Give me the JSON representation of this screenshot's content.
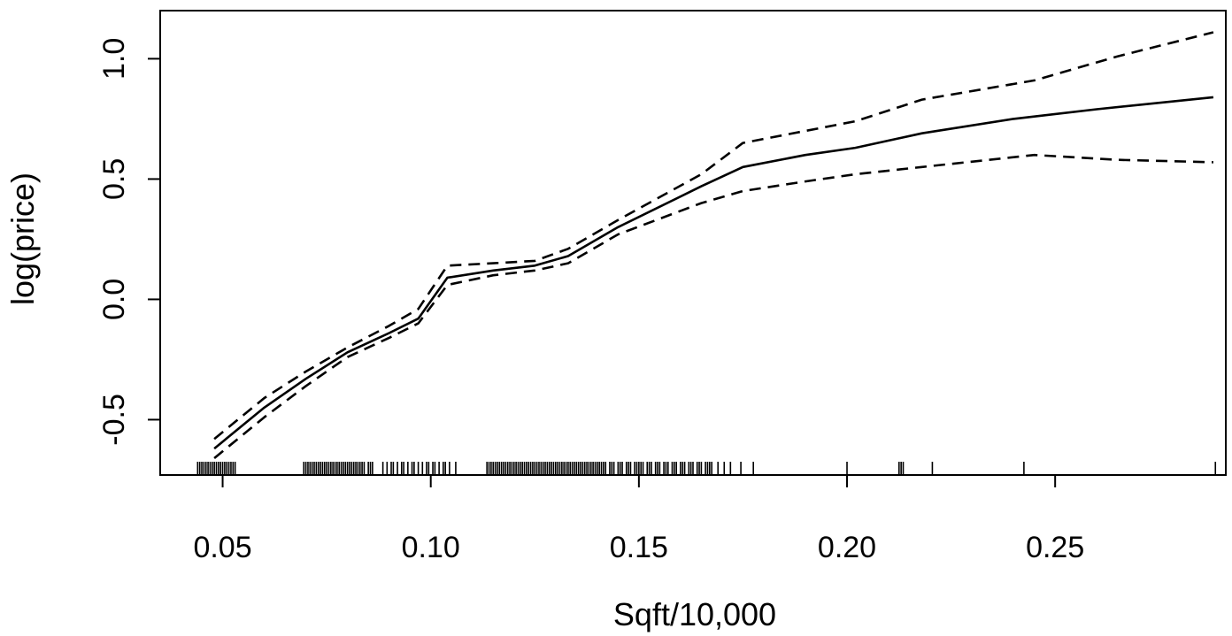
{
  "chart_data": {
    "type": "line",
    "xlabel": "Sqft/10,000",
    "ylabel": "log(price)",
    "xlim": [
      0.035,
      0.291
    ],
    "ylim": [
      -0.73,
      1.2
    ],
    "x_ticks": [
      {
        "value": 0.05,
        "label": "0.05"
      },
      {
        "value": 0.1,
        "label": "0.10"
      },
      {
        "value": 0.15,
        "label": "0.15"
      },
      {
        "value": 0.2,
        "label": "0.20"
      },
      {
        "value": 0.25,
        "label": "0.25"
      }
    ],
    "y_ticks": [
      {
        "value": -0.5,
        "label": "-0.5"
      },
      {
        "value": 0.0,
        "label": "0.0"
      },
      {
        "value": 0.5,
        "label": "0.5"
      },
      {
        "value": 1.0,
        "label": "1.0"
      }
    ],
    "grid": false,
    "series": [
      {
        "style": "solid",
        "x": [
          0.048,
          0.06,
          0.07,
          0.08,
          0.09,
          0.097,
          0.104,
          0.115,
          0.125,
          0.133,
          0.145,
          0.165,
          0.175,
          0.19,
          0.202,
          0.218,
          0.24,
          0.26,
          0.288
        ],
        "y": [
          -0.62,
          -0.45,
          -0.33,
          -0.22,
          -0.14,
          -0.08,
          0.09,
          0.12,
          0.14,
          0.18,
          0.3,
          0.47,
          0.55,
          0.6,
          0.63,
          0.69,
          0.75,
          0.79,
          0.84
        ]
      },
      {
        "style": "dashed",
        "x": [
          0.048,
          0.06,
          0.07,
          0.08,
          0.09,
          0.097,
          0.104,
          0.115,
          0.125,
          0.133,
          0.145,
          0.165,
          0.175,
          0.19,
          0.202,
          0.218,
          0.245,
          0.265,
          0.288
        ],
        "y": [
          -0.58,
          -0.41,
          -0.3,
          -0.2,
          -0.11,
          -0.04,
          0.14,
          0.15,
          0.16,
          0.21,
          0.33,
          0.52,
          0.65,
          0.7,
          0.74,
          0.83,
          0.91,
          1.01,
          1.11
        ]
      },
      {
        "style": "dashed",
        "x": [
          0.048,
          0.06,
          0.07,
          0.08,
          0.09,
          0.097,
          0.104,
          0.115,
          0.125,
          0.133,
          0.145,
          0.165,
          0.175,
          0.19,
          0.202,
          0.218,
          0.245,
          0.265,
          0.288
        ],
        "y": [
          -0.66,
          -0.49,
          -0.36,
          -0.24,
          -0.16,
          -0.1,
          0.06,
          0.1,
          0.12,
          0.15,
          0.27,
          0.4,
          0.45,
          0.49,
          0.52,
          0.55,
          0.6,
          0.58,
          0.57
        ]
      }
    ],
    "rug_x": [
      0.044,
      0.0445,
      0.045,
      0.0455,
      0.046,
      0.0465,
      0.047,
      0.0475,
      0.048,
      0.0485,
      0.049,
      0.0495,
      0.05,
      0.0505,
      0.051,
      0.0515,
      0.052,
      0.0525,
      0.053,
      0.0695,
      0.07,
      0.0705,
      0.071,
      0.0715,
      0.072,
      0.0725,
      0.073,
      0.0735,
      0.074,
      0.0745,
      0.075,
      0.0755,
      0.076,
      0.0765,
      0.077,
      0.0775,
      0.078,
      0.0785,
      0.079,
      0.0795,
      0.08,
      0.0805,
      0.081,
      0.0815,
      0.082,
      0.0825,
      0.083,
      0.0835,
      0.084,
      0.085,
      0.0855,
      0.086,
      0.0885,
      0.0895,
      0.0905,
      0.091,
      0.092,
      0.093,
      0.0935,
      0.0945,
      0.0955,
      0.096,
      0.097,
      0.098,
      0.099,
      0.0995,
      0.1005,
      0.101,
      0.102,
      0.103,
      0.1035,
      0.1045,
      0.106,
      0.1135,
      0.114,
      0.1145,
      0.115,
      0.1155,
      0.116,
      0.1165,
      0.117,
      0.1175,
      0.118,
      0.1185,
      0.119,
      0.1195,
      0.12,
      0.1205,
      0.121,
      0.1215,
      0.122,
      0.1225,
      0.123,
      0.1235,
      0.124,
      0.1245,
      0.125,
      0.1255,
      0.126,
      0.1265,
      0.127,
      0.1275,
      0.128,
      0.1285,
      0.129,
      0.1295,
      0.13,
      0.1305,
      0.131,
      0.1315,
      0.132,
      0.1325,
      0.133,
      0.1335,
      0.134,
      0.1345,
      0.135,
      0.1355,
      0.136,
      0.1365,
      0.137,
      0.1375,
      0.138,
      0.1385,
      0.139,
      0.1395,
      0.14,
      0.1405,
      0.141,
      0.1415,
      0.142,
      0.143,
      0.1435,
      0.144,
      0.145,
      0.1455,
      0.146,
      0.147,
      0.1475,
      0.148,
      0.149,
      0.1495,
      0.15,
      0.1505,
      0.151,
      0.152,
      0.1525,
      0.153,
      0.154,
      0.1545,
      0.155,
      0.156,
      0.1565,
      0.157,
      0.158,
      0.1585,
      0.159,
      0.16,
      0.1605,
      0.161,
      0.162,
      0.1625,
      0.163,
      0.164,
      0.1645,
      0.165,
      0.166,
      0.1665,
      0.167,
      0.1675,
      0.169,
      0.1705,
      0.172,
      0.1745,
      0.1775,
      0.2,
      0.2125,
      0.213,
      0.2135,
      0.2205,
      0.2425,
      0.2885
    ]
  }
}
